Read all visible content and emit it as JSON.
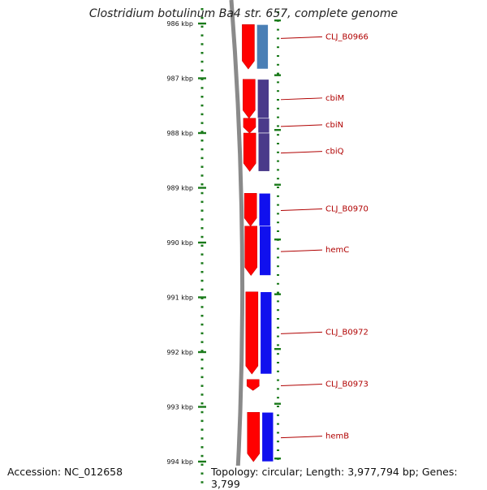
{
  "title": "Clostridium botulinum Ba4 str. 657, complete genome",
  "footer": {
    "accession": "Accession: NC_012658",
    "topology": "Topology: circular; Length: 3,977,794 bp; Genes: 3,799"
  },
  "ruler": {
    "unit": "kbp",
    "ticks": [
      {
        "kbp": 986,
        "label": "986 kbp"
      },
      {
        "kbp": 987,
        "label": "987 kbp"
      },
      {
        "kbp": 988,
        "label": "988 kbp"
      },
      {
        "kbp": 989,
        "label": "989 kbp"
      },
      {
        "kbp": 990,
        "label": "990 kbp"
      },
      {
        "kbp": 991,
        "label": "991 kbp"
      },
      {
        "kbp": 992,
        "label": "992 kbp"
      },
      {
        "kbp": 993,
        "label": "993 kbp"
      },
      {
        "kbp": 994,
        "label": "994 kbp"
      }
    ]
  },
  "genes": [
    {
      "name": "CLJ_B0966",
      "start_kbp": 986.02,
      "end_kbp": 986.83,
      "color": "#4a7fb5",
      "strand": "forward"
    },
    {
      "name": "cbiM",
      "start_kbp": 987.02,
      "end_kbp": 987.73,
      "color": "#4a3a8a",
      "strand": "forward"
    },
    {
      "name": "cbiN",
      "start_kbp": 987.73,
      "end_kbp": 988.0,
      "color": "#4a3a8a",
      "strand": "forward"
    },
    {
      "name": "cbiQ",
      "start_kbp": 988.0,
      "end_kbp": 988.7,
      "color": "#4a3a8a",
      "strand": "forward"
    },
    {
      "name": "CLJ_B0970",
      "start_kbp": 989.1,
      "end_kbp": 989.7,
      "color": "#1010ee",
      "strand": "forward"
    },
    {
      "name": "hemC",
      "start_kbp": 989.7,
      "end_kbp": 990.6,
      "color": "#1010ee",
      "strand": "forward"
    },
    {
      "name": "CLJ_B0972",
      "start_kbp": 990.9,
      "end_kbp": 992.4,
      "color": "#1010ee",
      "strand": "forward"
    },
    {
      "name": "CLJ_B0973",
      "start_kbp": 992.5,
      "end_kbp": 992.7,
      "color": "#ff0000",
      "strand": "forward"
    },
    {
      "name": "hemB",
      "start_kbp": 993.1,
      "end_kbp": 994.0,
      "color": "#1010ee",
      "strand": "forward"
    }
  ],
  "colors": {
    "backbone": "#8a8a8a",
    "tick": "#1a7a1a",
    "cds": "#ff0000",
    "label": "#b00000"
  }
}
